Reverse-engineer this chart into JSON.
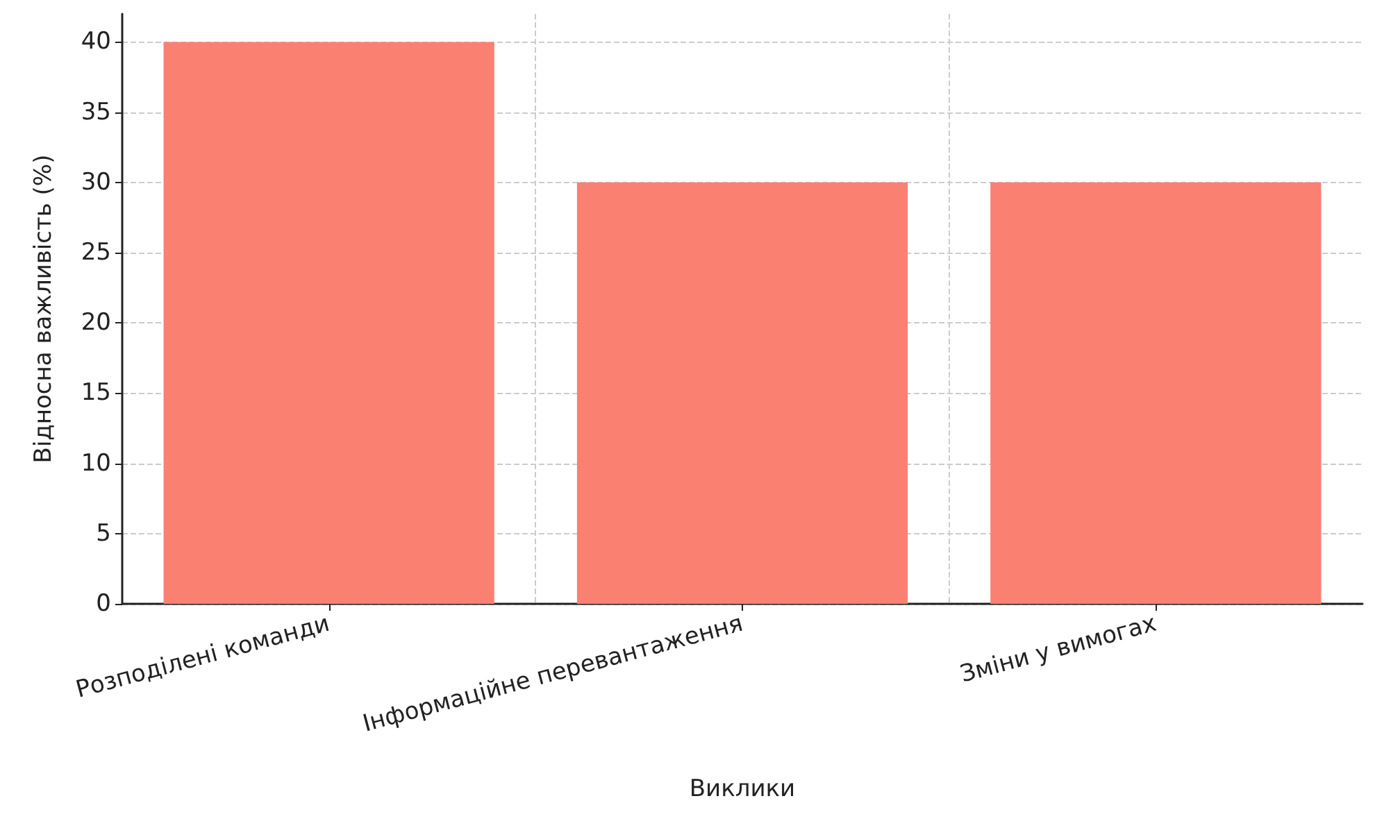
{
  "chart_data": {
    "type": "bar",
    "xlabel": "Виклики",
    "ylabel": "Відносна важливість (%)",
    "categories": [
      "Розподілені команди",
      "Інформаційне перевантаження",
      "Зміни у вимогах"
    ],
    "values": [
      40,
      30,
      30
    ],
    "color": "#fa8072",
    "ylim": [
      0,
      42
    ],
    "yticks": [
      0,
      5,
      10,
      15,
      20,
      25,
      30,
      35,
      40
    ],
    "grid": true
  }
}
